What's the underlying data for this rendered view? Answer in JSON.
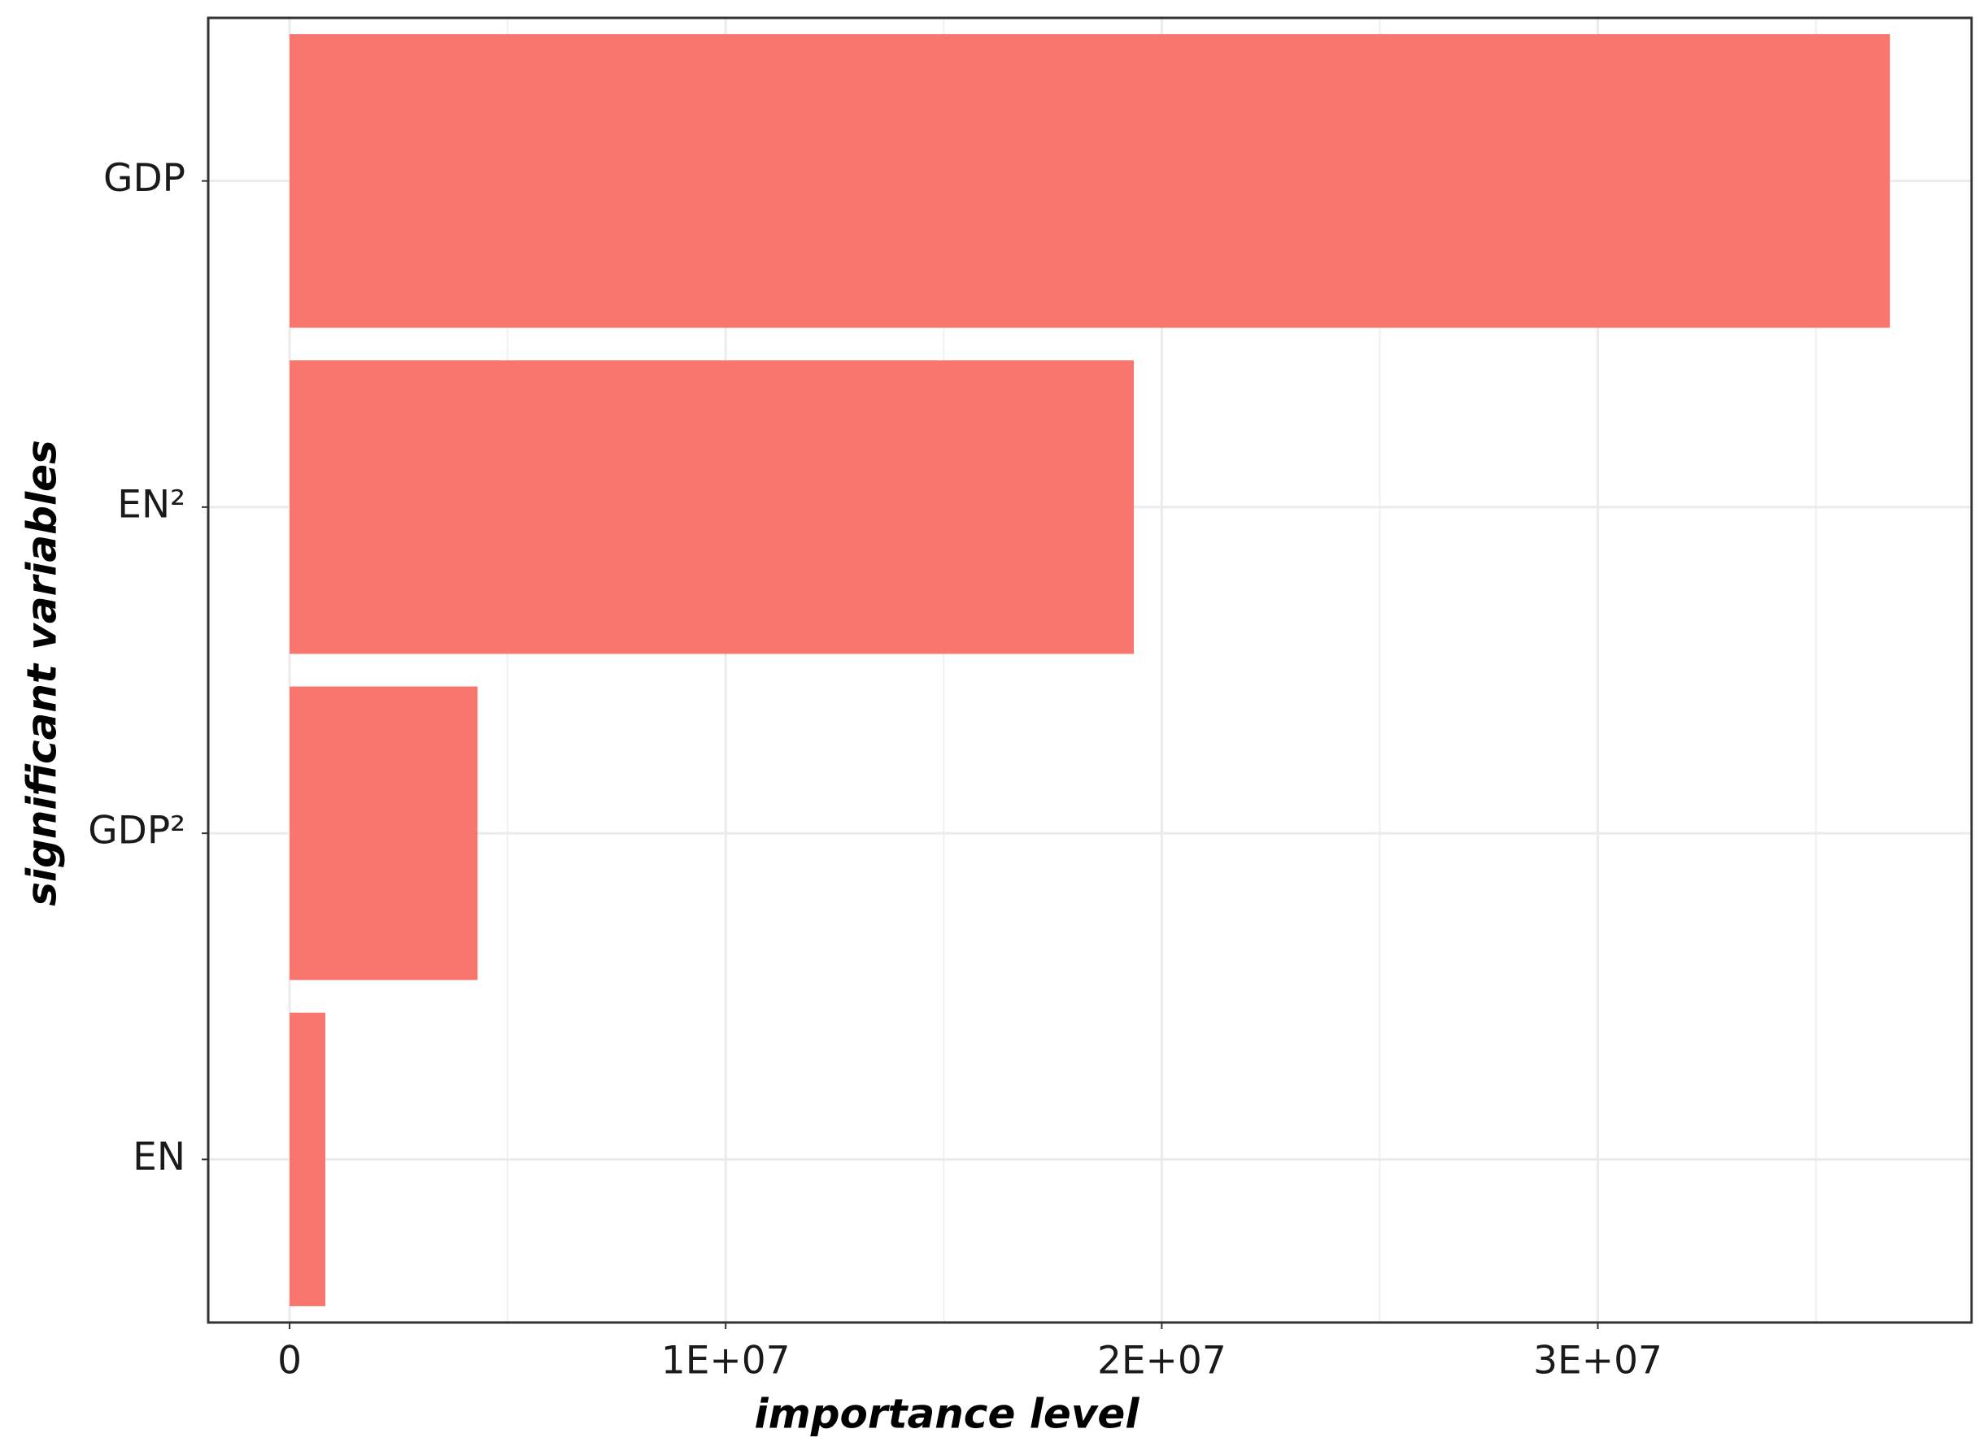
{
  "chart_data": {
    "type": "bar",
    "orientation": "horizontal",
    "xlabel": "importance level",
    "ylabel": "significant variables",
    "categories": [
      "GDP",
      "EN²",
      "GDP²",
      "EN"
    ],
    "values": [
      36700000,
      19360000,
      4310000,
      820000
    ],
    "color": "#f8766d",
    "xlim": [
      -1866000,
      38570000
    ],
    "xticks": [
      0,
      {
        "value": 10000000,
        "label": "1E+07"
      },
      {
        "value": 20000000,
        "label": "2E+07"
      },
      {
        "value": 30000000,
        "label": "3E+07"
      }
    ],
    "grid": true
  }
}
